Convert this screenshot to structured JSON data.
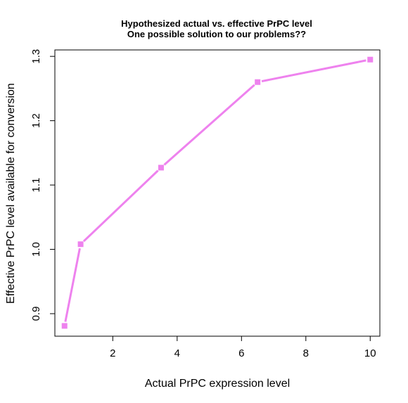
{
  "chart_data": {
    "type": "line",
    "title": "Hypothesized actual vs. effective PrPC level",
    "subtitle": "One possible solution to our problems??",
    "xlabel": "Actual PrPC expression level",
    "ylabel": "Effective PrPC level available for conversion",
    "xlim": [
      0.2,
      10.3
    ],
    "ylim": [
      0.865,
      1.31
    ],
    "x_ticks": [
      2,
      4,
      6,
      8,
      10
    ],
    "y_ticks": [
      0.9,
      1.0,
      1.1,
      1.2,
      1.3
    ],
    "x_tick_labels": [
      "2",
      "4",
      "6",
      "8",
      "10"
    ],
    "y_tick_labels": [
      "0.9",
      "1.0",
      "1.1",
      "1.2",
      "1.3"
    ],
    "grid": false,
    "legend": "none",
    "series": [
      {
        "color": "#ee82ee",
        "marker": "square",
        "x": [
          0.5,
          1.0,
          3.5,
          6.5,
          10.0
        ],
        "y": [
          0.881,
          1.008,
          1.127,
          1.26,
          1.295
        ]
      }
    ]
  }
}
